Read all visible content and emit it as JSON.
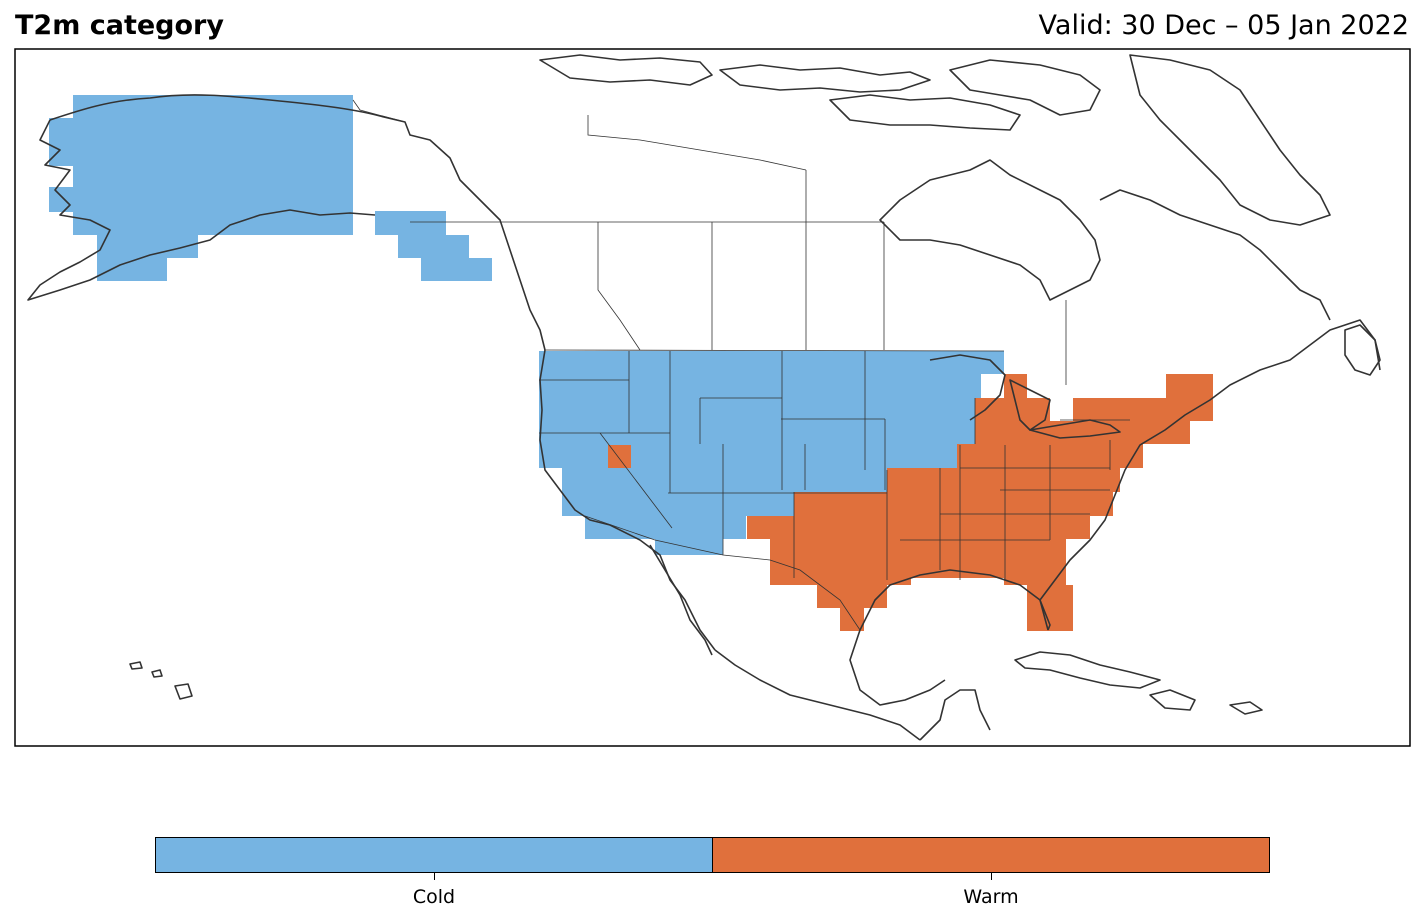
{
  "header": {
    "title": "T2m category",
    "valid": "Valid: 30 Dec – 05 Jan 2022"
  },
  "colors": {
    "cold": "#76b4e2",
    "warm": "#e0703c",
    "coast": "#333333"
  },
  "legend": {
    "items": [
      {
        "label": "Cold",
        "color": "#76b4e2"
      },
      {
        "label": "Warm",
        "color": "#e0703c"
      }
    ]
  }
}
